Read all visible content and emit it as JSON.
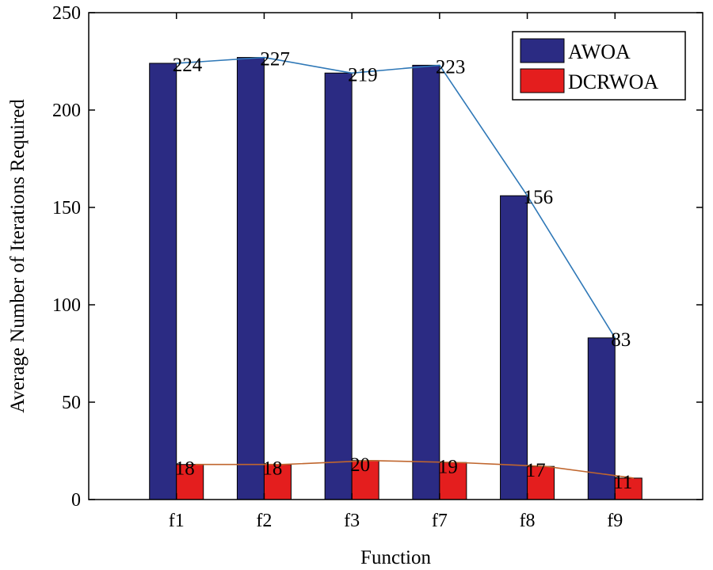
{
  "chart_data": {
    "type": "bar",
    "categories": [
      "f1",
      "f2",
      "f3",
      "f7",
      "f8",
      "f9"
    ],
    "series": [
      {
        "name": "AWOA",
        "values": [
          224,
          227,
          219,
          223,
          156,
          83
        ],
        "color": "#2b2b83",
        "line_color": "#2f78b7"
      },
      {
        "name": "DCRWOA",
        "values": [
          18,
          18,
          20,
          19,
          17,
          11
        ],
        "color": "#e41e1e",
        "line_color": "#c0662e"
      }
    ],
    "data_labels": [
      [
        "224",
        "227",
        "219",
        "223",
        "156",
        "83"
      ],
      [
        "18",
        "18",
        "20",
        "19",
        "17",
        "11"
      ]
    ],
    "xlabel": "Function",
    "ylabel": "Average Number of Iterations Required",
    "ylim": [
      0,
      250
    ],
    "yticks": [
      0,
      50,
      100,
      150,
      200,
      250
    ],
    "grid": false,
    "legend_position": "top-right",
    "trend_lines": true
  }
}
